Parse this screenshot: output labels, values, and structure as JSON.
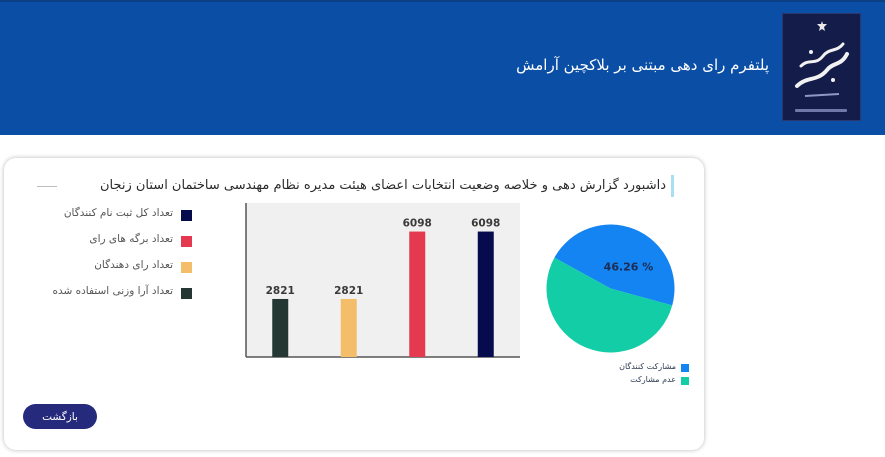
{
  "header": {
    "app_title": "پلتفرم رای دهی مبتنی بر بلاکچین آرامش",
    "logo": "election-logo"
  },
  "dashboard": {
    "title": "داشبورد گزارش دهی و خلاصه وضعیت انتخابات اعضای هیئت مدیره نظام مهندسی ساختمان استان زنجان",
    "legend": [
      {
        "label": "تعداد کل ثبت نام کنندگان",
        "color": "#050b4d"
      },
      {
        "label": "تعداد برگه های رای",
        "color": "#e53950"
      },
      {
        "label": "تعداد رای دهندگان",
        "color": "#f3bd6a"
      },
      {
        "label": "تعداد آرا وزنی استفاده شده",
        "color": "#253733"
      }
    ],
    "back_button": "بازگشت"
  },
  "chart_data": [
    {
      "type": "bar",
      "categories": [
        "تعداد آرا وزنی استفاده شده",
        "تعداد رای دهندگان",
        "تعداد برگه های رای",
        "تعداد کل ثبت نام کنندگان"
      ],
      "values": [
        2821,
        2821,
        6098,
        6098
      ],
      "value_labels": [
        "2821",
        "2821",
        "6098",
        "6098"
      ],
      "colors": [
        "#253733",
        "#f3bd6a",
        "#e53950",
        "#050b4d"
      ],
      "ylim": [
        0,
        7000
      ],
      "grid": false,
      "background": "#f0f0f0"
    },
    {
      "type": "pie",
      "slices": [
        {
          "label": "مشارکت کنندگان",
          "value": 46.26,
          "color": "#1384f2"
        },
        {
          "label": "عدم مشارکت",
          "value": 53.74,
          "color": "#12cda5"
        }
      ],
      "center_label": "46.26 %"
    }
  ]
}
